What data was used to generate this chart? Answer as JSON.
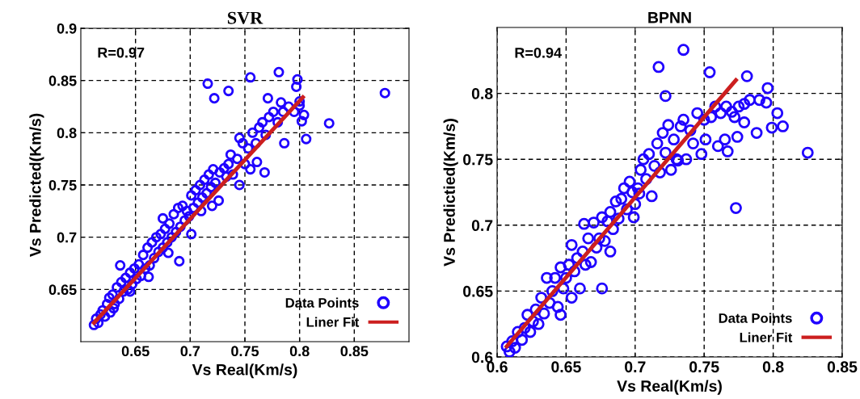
{
  "chart_data": [
    {
      "type": "scatter",
      "title": "SVR",
      "xlabel": "Vs Real(Km/s)",
      "ylabel": "Vs Predicted(Km/s)",
      "annotations": [
        "R=0.97"
      ],
      "xlim": [
        0.6,
        0.9
      ],
      "ylim": [
        0.6,
        0.9
      ],
      "xticks": [
        0.65,
        0.7,
        0.75,
        0.8,
        0.85
      ],
      "yticks": [
        0.65,
        0.7,
        0.75,
        0.8,
        0.85,
        0.9
      ],
      "grid": true,
      "legend": "bottom right",
      "series": [
        {
          "name": "Data Points",
          "marker": "circle",
          "color": "#1f00ff",
          "x": [
            0.612,
            0.614,
            0.616,
            0.618,
            0.62,
            0.622,
            0.624,
            0.626,
            0.627,
            0.629,
            0.631,
            0.633,
            0.635,
            0.637,
            0.639,
            0.641,
            0.643,
            0.645,
            0.647,
            0.649,
            0.651,
            0.653,
            0.655,
            0.657,
            0.659,
            0.661,
            0.663,
            0.665,
            0.667,
            0.669,
            0.671,
            0.673,
            0.675,
            0.677,
            0.679,
            0.681,
            0.683,
            0.685,
            0.687,
            0.689,
            0.691,
            0.693,
            0.695,
            0.697,
            0.699,
            0.701,
            0.703,
            0.705,
            0.707,
            0.709,
            0.711,
            0.713,
            0.715,
            0.717,
            0.719,
            0.721,
            0.723,
            0.727,
            0.731,
            0.735,
            0.739,
            0.743,
            0.748,
            0.75,
            0.753,
            0.757,
            0.76,
            0.763,
            0.766,
            0.769,
            0.772,
            0.776,
            0.78,
            0.785,
            0.79,
            0.795,
            0.8,
            0.761,
            0.755,
            0.733,
            0.68,
            0.662,
            0.645,
            0.63,
            0.72,
            0.71,
            0.716,
            0.722,
            0.735,
            0.755,
            0.781,
            0.798,
            0.797,
            0.878,
            0.827,
            0.806,
            0.786,
            0.768,
            0.726,
            0.69,
            0.701,
            0.636,
            0.675,
            0.745,
            0.737,
            0.771,
            0.783,
            0.802,
            0.804,
            0.8,
            0.745
          ],
          "values": [
            0.616,
            0.622,
            0.618,
            0.626,
            0.63,
            0.624,
            0.636,
            0.642,
            0.628,
            0.645,
            0.636,
            0.652,
            0.641,
            0.657,
            0.648,
            0.661,
            0.65,
            0.666,
            0.655,
            0.67,
            0.66,
            0.674,
            0.663,
            0.683,
            0.67,
            0.69,
            0.673,
            0.695,
            0.68,
            0.7,
            0.686,
            0.703,
            0.69,
            0.708,
            0.695,
            0.713,
            0.7,
            0.722,
            0.705,
            0.728,
            0.71,
            0.73,
            0.716,
            0.725,
            0.72,
            0.74,
            0.728,
            0.745,
            0.733,
            0.75,
            0.738,
            0.755,
            0.742,
            0.76,
            0.748,
            0.765,
            0.752,
            0.762,
            0.766,
            0.77,
            0.76,
            0.775,
            0.79,
            0.77,
            0.785,
            0.8,
            0.79,
            0.805,
            0.81,
            0.798,
            0.815,
            0.82,
            0.81,
            0.82,
            0.825,
            0.82,
            0.83,
            0.772,
            0.765,
            0.758,
            0.685,
            0.662,
            0.648,
            0.632,
            0.73,
            0.725,
            0.847,
            0.833,
            0.84,
            0.853,
            0.858,
            0.851,
            0.844,
            0.838,
            0.809,
            0.794,
            0.79,
            0.762,
            0.735,
            0.677,
            0.703,
            0.673,
            0.718,
            0.795,
            0.779,
            0.833,
            0.829,
            0.811,
            0.817,
            0.826,
            0.75
          ]
        },
        {
          "name": "Liner Fit",
          "type": "line",
          "color": "#cc1f1f",
          "line_style": "solid",
          "x": [
            0.612,
            0.803
          ],
          "values": [
            0.618,
            0.834
          ]
        }
      ]
    },
    {
      "type": "scatter",
      "title": "BPNN",
      "xlabel": "Vs Real(Km/s)",
      "ylabel": "Vs Predictied(Km/s)",
      "annotations": [
        "R=0.94"
      ],
      "xlim": [
        0.6,
        0.85
      ],
      "ylim": [
        0.6,
        0.85
      ],
      "xticks": [
        0.6,
        0.65,
        0.7,
        0.75,
        0.8,
        0.85
      ],
      "yticks": [
        0.6,
        0.65,
        0.7,
        0.75,
        0.8
      ],
      "grid": true,
      "legend": "bottom right",
      "series": [
        {
          "name": "Data Points",
          "marker": "circle",
          "color": "#1f00ff",
          "x": [
            0.607,
            0.609,
            0.611,
            0.613,
            0.615,
            0.618,
            0.62,
            0.622,
            0.624,
            0.626,
            0.628,
            0.63,
            0.632,
            0.634,
            0.636,
            0.638,
            0.64,
            0.642,
            0.644,
            0.646,
            0.648,
            0.65,
            0.652,
            0.654,
            0.656,
            0.658,
            0.66,
            0.662,
            0.664,
            0.666,
            0.668,
            0.67,
            0.672,
            0.674,
            0.676,
            0.678,
            0.68,
            0.682,
            0.684,
            0.686,
            0.688,
            0.69,
            0.692,
            0.694,
            0.696,
            0.698,
            0.7,
            0.702,
            0.704,
            0.706,
            0.708,
            0.71,
            0.712,
            0.714,
            0.716,
            0.718,
            0.72,
            0.722,
            0.724,
            0.726,
            0.728,
            0.73,
            0.733,
            0.735,
            0.737,
            0.74,
            0.745,
            0.75,
            0.755,
            0.758,
            0.762,
            0.766,
            0.77,
            0.772,
            0.775,
            0.779,
            0.783,
            0.79,
            0.795,
            0.76,
            0.765,
            0.779,
            0.731,
            0.703,
            0.735,
            0.717,
            0.754,
            0.781,
            0.796,
            0.722,
            0.825,
            0.773,
            0.676,
            0.646,
            0.654,
            0.663,
            0.682,
            0.699,
            0.807,
            0.799,
            0.803,
            0.788,
            0.774,
            0.767,
            0.748,
            0.742,
            0.751
          ],
          "values": [
            0.608,
            0.604,
            0.612,
            0.607,
            0.619,
            0.613,
            0.622,
            0.632,
            0.619,
            0.627,
            0.636,
            0.625,
            0.645,
            0.633,
            0.66,
            0.641,
            0.65,
            0.66,
            0.638,
            0.668,
            0.652,
            0.66,
            0.67,
            0.645,
            0.665,
            0.675,
            0.652,
            0.68,
            0.67,
            0.69,
            0.672,
            0.702,
            0.683,
            0.69,
            0.706,
            0.688,
            0.703,
            0.71,
            0.697,
            0.718,
            0.705,
            0.72,
            0.728,
            0.712,
            0.733,
            0.725,
            0.716,
            0.728,
            0.742,
            0.75,
            0.735,
            0.754,
            0.722,
            0.745,
            0.762,
            0.74,
            0.77,
            0.755,
            0.776,
            0.742,
            0.765,
            0.75,
            0.775,
            0.78,
            0.75,
            0.772,
            0.785,
            0.78,
            0.782,
            0.79,
            0.785,
            0.79,
            0.786,
            0.782,
            0.79,
            0.792,
            0.795,
            0.795,
            0.793,
            0.76,
            0.765,
            0.778,
            0.749,
            0.724,
            0.833,
            0.82,
            0.816,
            0.813,
            0.804,
            0.798,
            0.755,
            0.713,
            0.652,
            0.632,
            0.685,
            0.701,
            0.68,
            0.706,
            0.775,
            0.774,
            0.785,
            0.77,
            0.767,
            0.756,
            0.754,
            0.762,
            0.765
          ]
        },
        {
          "name": "Liner Fit",
          "type": "line",
          "color": "#cc1f1f",
          "line_style": "solid",
          "x": [
            0.607,
            0.773
          ],
          "values": [
            0.608,
            0.81
          ]
        }
      ]
    }
  ]
}
